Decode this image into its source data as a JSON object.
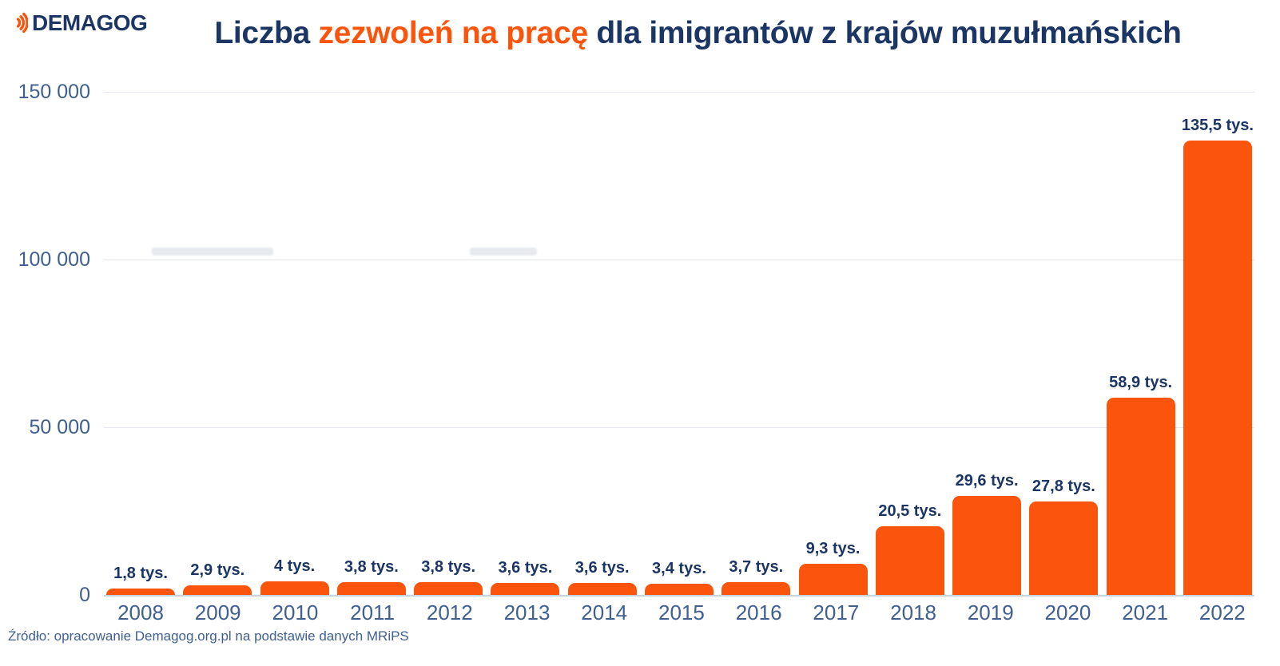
{
  "logo": {
    "brand": "DEMAGOG"
  },
  "title": {
    "part1": "Liczba ",
    "highlight": "zezwoleń na pracę",
    "part2": " dla imigrantów z krajów muzułmańskich"
  },
  "source": "Źródło: opracowanie Demagog.org.pl na podstawie danych MRiPS",
  "colors": {
    "navy": "#1B3665",
    "orange": "#FB540C",
    "axis_text": "#3E5F8F",
    "gridline": "#E4E8EE",
    "baseline": "#C9D3DE"
  },
  "chart_data": {
    "type": "bar",
    "title": "Liczba zezwoleń na pracę dla imigrantów z krajów muzułmańskich",
    "categories": [
      "2008",
      "2009",
      "2010",
      "2011",
      "2012",
      "2013",
      "2014",
      "2015",
      "2016",
      "2017",
      "2018",
      "2019",
      "2020",
      "2021",
      "2022"
    ],
    "values": [
      1800,
      2900,
      4000,
      3800,
      3800,
      3600,
      3600,
      3400,
      3700,
      9300,
      20500,
      29600,
      27800,
      58900,
      135500
    ],
    "value_labels": [
      "1,8 tys.",
      "2,9 tys.",
      "4 tys.",
      "3,8 tys.",
      "3,8 tys.",
      "3,6 tys.",
      "3,6 tys.",
      "3,4 tys.",
      "3,7 tys.",
      "9,3 tys.",
      "20,5 tys.",
      "29,6 tys.",
      "27,8 tys.",
      "58,9 tys.",
      "135,5 tys."
    ],
    "xlabel": "",
    "ylabel": "",
    "y_ticks": [
      "150 000",
      "100 000",
      "50 000",
      "0"
    ],
    "ylim": [
      0,
      150000
    ],
    "grid": true,
    "legend": false,
    "bar_color": "#FB540C"
  }
}
